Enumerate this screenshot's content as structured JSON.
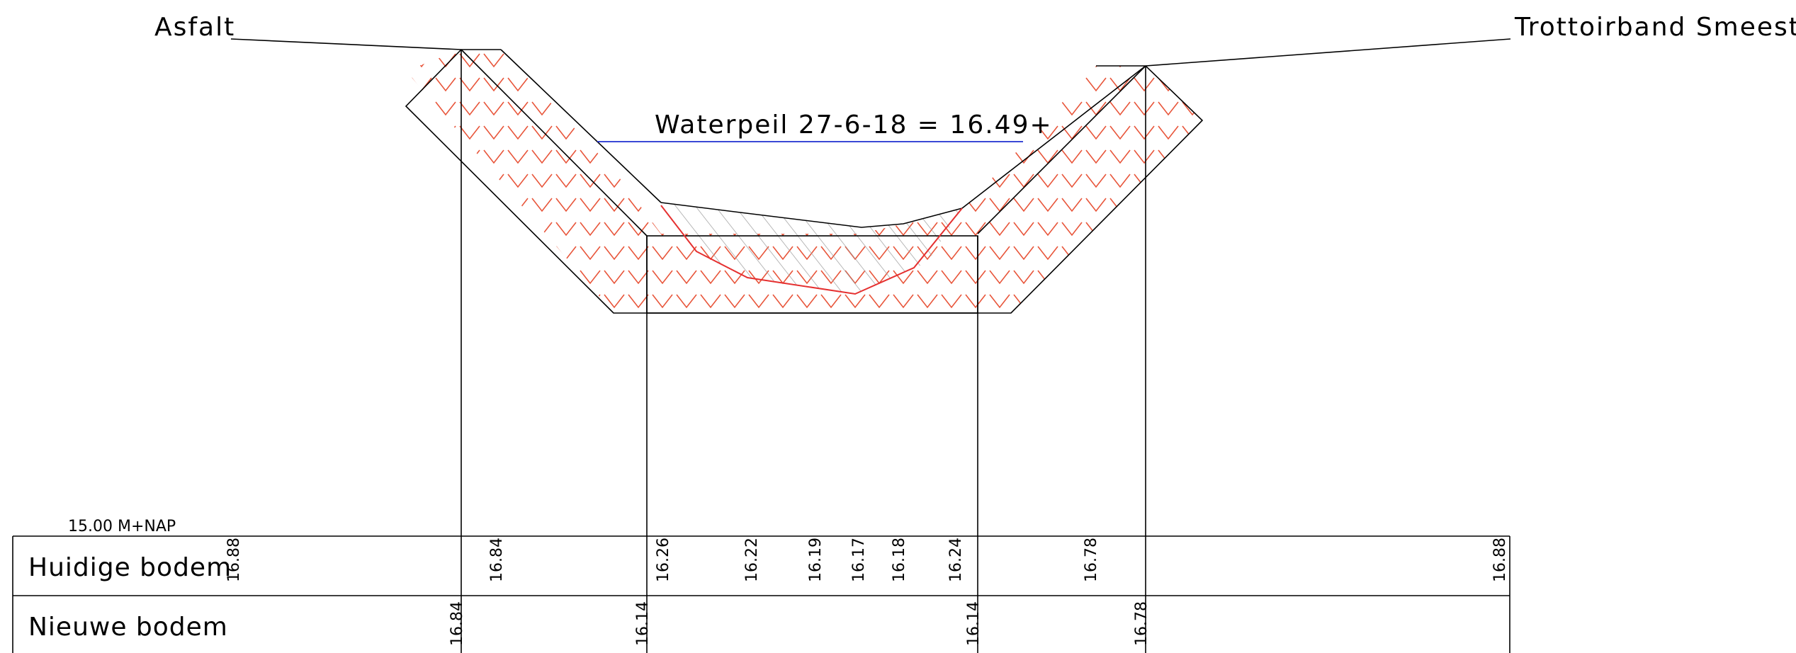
{
  "labels": {
    "asfalt": "Asfalt",
    "trottoirband": "Trottoirband Smeestraat",
    "waterpeil": "Waterpeil 27-6-18 = 16.49+",
    "reference": "15.00 M+NAP"
  },
  "table": {
    "rows": [
      "Huidige bodem",
      "Nieuwe bodem"
    ],
    "huidige_bodem": [
      "16.88",
      "16.84",
      "16.26",
      "16.22",
      "16.19",
      "16.17",
      "16.18",
      "16.24",
      "16.78",
      "16.88"
    ],
    "nieuwe_bodem": [
      "16.84",
      "16.14",
      "16.14",
      "16.78"
    ]
  },
  "colors": {
    "line": "#000000",
    "hatch_red": "#e8553a",
    "water": "#1f2fd0",
    "silt_hatch": "#9a9a9a",
    "profile_red": "#e53030"
  }
}
